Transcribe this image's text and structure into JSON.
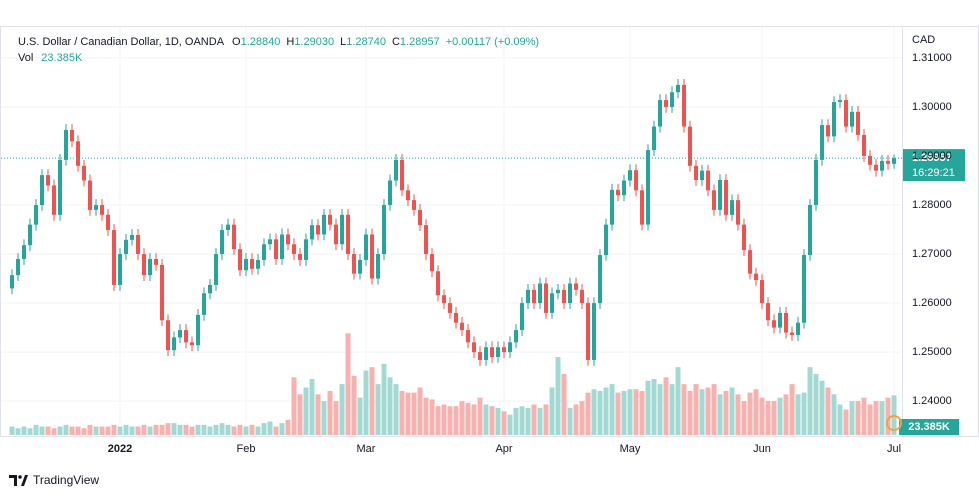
{
  "chart_data": {
    "type": "candlestick",
    "legend": {
      "symbol": "U.S. Dollar / Canadian Dollar, 1D, OANDA",
      "items": [
        {
          "label": "O",
          "value": "1.28840"
        },
        {
          "label": "H",
          "value": "1.29030"
        },
        {
          "label": "L",
          "value": "1.28740"
        },
        {
          "label": "C",
          "value": "1.28957"
        }
      ],
      "change": "+0.00117 (+0.09%)",
      "volume_label": "Vol"
    },
    "currency": "CAD",
    "countdown": "16:29:21",
    "footer": "TradingView",
    "up_color": "#26a69a",
    "down_color": "#ef5350",
    "ylim": [
      1.2331,
      1.3161
    ],
    "yticks": [
      {
        "value": 1.24,
        "label": "1.24000"
      },
      {
        "value": 1.25,
        "label": "1.25000"
      },
      {
        "value": 1.26,
        "label": "1.26000"
      },
      {
        "value": 1.27,
        "label": "1.27000"
      },
      {
        "value": 1.28,
        "label": "1.28000"
      },
      {
        "value": 1.29,
        "label": "1.29000"
      },
      {
        "value": 1.3,
        "label": "1.30000"
      },
      {
        "value": 1.31,
        "label": "1.31000"
      }
    ],
    "grid": true,
    "categories": [
      null,
      null,
      null,
      null,
      null,
      null,
      null,
      null,
      null,
      null,
      null,
      null,
      null,
      null,
      null,
      null,
      null,
      null,
      "2022",
      null,
      null,
      null,
      null,
      null,
      null,
      null,
      null,
      null,
      null,
      null,
      null,
      null,
      null,
      null,
      null,
      null,
      null,
      null,
      null,
      "Feb",
      null,
      null,
      null,
      null,
      null,
      null,
      null,
      null,
      null,
      null,
      null,
      null,
      null,
      null,
      null,
      null,
      null,
      null,
      null,
      "Mar",
      null,
      null,
      null,
      null,
      null,
      null,
      null,
      null,
      null,
      null,
      null,
      null,
      null,
      null,
      null,
      null,
      null,
      null,
      null,
      null,
      null,
      null,
      "Apr",
      null,
      null,
      null,
      null,
      null,
      null,
      null,
      null,
      null,
      null,
      null,
      null,
      null,
      null,
      null,
      null,
      null,
      null,
      null,
      null,
      "May",
      null,
      null,
      null,
      null,
      null,
      null,
      null,
      null,
      null,
      null,
      null,
      null,
      null,
      null,
      null,
      null,
      null,
      null,
      null,
      null,
      null,
      "Jun",
      null,
      null,
      null,
      null,
      null,
      null,
      null,
      null,
      null,
      null,
      null,
      null,
      null,
      null,
      null,
      null,
      null,
      null,
      null,
      null,
      null,
      "Jul"
    ],
    "open": [
      1.263,
      1.2657,
      1.269,
      1.2718,
      1.276,
      1.28,
      1.2861,
      1.284,
      1.278,
      1.2892,
      1.2953,
      1.293,
      1.288,
      1.285,
      1.279,
      1.28,
      1.278,
      1.2749,
      1.2637,
      1.27,
      1.2729,
      1.2739,
      1.27,
      1.2657,
      1.269,
      1.2678,
      1.2565,
      1.2504,
      1.253,
      1.2545,
      1.252,
      1.2514,
      1.2576,
      1.262,
      1.2637,
      1.27,
      1.2749,
      1.276,
      1.271,
      1.2667,
      1.269,
      1.267,
      1.2688,
      1.272,
      1.273,
      1.269,
      1.274,
      1.272,
      1.27,
      1.2688,
      1.273,
      1.2759,
      1.274,
      1.278,
      1.276,
      1.272,
      1.278,
      1.27,
      1.266,
      1.2688,
      1.274,
      1.265,
      1.27,
      1.28,
      1.285,
      1.2892,
      1.283,
      1.281,
      1.279,
      1.2759,
      1.27,
      1.2665,
      1.2616,
      1.26,
      1.258,
      1.256,
      1.2545,
      1.252,
      1.25,
      1.2484,
      1.251,
      1.249,
      1.251,
      1.25,
      1.252,
      1.2545,
      1.26,
      1.2627,
      1.26,
      1.264,
      1.258,
      1.262,
      1.2627,
      1.26,
      1.264,
      1.2627,
      1.26,
      1.2484,
      1.26,
      1.2698,
      1.276,
      1.2831,
      1.282,
      1.285,
      1.2871,
      1.283,
      1.276,
      1.2912,
      1.296,
      1.3014,
      1.3,
      1.303,
      1.3045,
      1.296,
      1.288,
      1.2851,
      1.287,
      1.283,
      1.279,
      1.2851,
      1.278,
      1.281,
      1.276,
      1.2708,
      1.266,
      1.2647,
      1.26,
      1.2565,
      1.255,
      1.258,
      1.254,
      1.2535,
      1.256,
      1.2698,
      1.28,
      1.2892,
      1.2963,
      1.294,
      1.301,
      1.3014,
      1.296,
      1.299,
      1.2943,
      1.29,
      1.2882,
      1.287,
      1.289,
      1.2884
    ],
    "high": [
      1.2669,
      1.2702,
      1.273,
      1.2772,
      1.2812,
      1.2873,
      1.2873,
      1.2852,
      1.2904,
      1.2965,
      1.2965,
      1.2942,
      1.2892,
      1.2862,
      1.2812,
      1.2812,
      1.2792,
      1.2761,
      1.2712,
      1.2741,
      1.2751,
      1.2751,
      1.2712,
      1.2702,
      1.2702,
      1.269,
      1.2577,
      1.2542,
      1.2557,
      1.2557,
      1.2532,
      1.2588,
      1.2632,
      1.2649,
      1.2712,
      1.2761,
      1.2772,
      1.2772,
      1.2722,
      1.2702,
      1.2702,
      1.27,
      1.2732,
      1.2742,
      1.2742,
      1.2752,
      1.2752,
      1.2732,
      1.2712,
      1.2742,
      1.2771,
      1.2771,
      1.2792,
      1.2792,
      1.2772,
      1.2792,
      1.2792,
      1.2712,
      1.27,
      1.2752,
      1.2752,
      1.2712,
      1.2812,
      1.2862,
      1.2904,
      1.2904,
      1.2842,
      1.2822,
      1.2802,
      1.2771,
      1.2712,
      1.2677,
      1.2628,
      1.2612,
      1.2592,
      1.2572,
      1.2557,
      1.2532,
      1.2512,
      1.2522,
      1.2522,
      1.2522,
      1.2522,
      1.2532,
      1.2557,
      1.2612,
      1.2639,
      1.2639,
      1.2652,
      1.2652,
      1.2632,
      1.2639,
      1.2639,
      1.2652,
      1.2652,
      1.2639,
      1.2612,
      1.2612,
      1.271,
      1.2772,
      1.2843,
      1.2843,
      1.2862,
      1.2883,
      1.2883,
      1.2842,
      1.2924,
      1.2972,
      1.3026,
      1.3026,
      1.3042,
      1.3057,
      1.3057,
      1.2972,
      1.2892,
      1.2882,
      1.2882,
      1.2842,
      1.2863,
      1.2863,
      1.2822,
      1.2822,
      1.2772,
      1.272,
      1.2672,
      1.2659,
      1.2612,
      1.2577,
      1.2592,
      1.2592,
      1.2552,
      1.2572,
      1.271,
      1.2812,
      1.2904,
      1.2975,
      1.2975,
      1.3022,
      1.3026,
      1.3026,
      1.3002,
      1.3002,
      1.2955,
      1.2912,
      1.2894,
      1.2902,
      1.2902,
      1.2903
    ],
    "low": [
      1.2618,
      1.2645,
      1.2678,
      1.2706,
      1.2748,
      1.2788,
      1.2828,
      1.2768,
      1.2768,
      1.288,
      1.2918,
      1.2868,
      1.2838,
      1.2778,
      1.2778,
      1.2768,
      1.2737,
      1.2625,
      1.2625,
      1.2688,
      1.2717,
      1.2688,
      1.2645,
      1.2645,
      1.2666,
      1.2553,
      1.2492,
      1.2492,
      1.2518,
      1.2508,
      1.2502,
      1.2502,
      1.2564,
      1.2608,
      1.2625,
      1.2688,
      1.2737,
      1.2698,
      1.2655,
      1.2655,
      1.2658,
      1.2658,
      1.2676,
      1.2708,
      1.2678,
      1.2678,
      1.2708,
      1.2688,
      1.2676,
      1.2676,
      1.2718,
      1.2728,
      1.2728,
      1.2748,
      1.2708,
      1.2708,
      1.2688,
      1.2648,
      1.2648,
      1.2676,
      1.2638,
      1.2638,
      1.2688,
      1.2788,
      1.2838,
      1.2818,
      1.2798,
      1.2778,
      1.2747,
      1.2688,
      1.2653,
      1.2604,
      1.2588,
      1.2568,
      1.2548,
      1.2533,
      1.2508,
      1.2488,
      1.2472,
      1.2472,
      1.2478,
      1.2478,
      1.2488,
      1.2488,
      1.2508,
      1.2533,
      1.2588,
      1.2588,
      1.2588,
      1.2568,
      1.2568,
      1.2608,
      1.2588,
      1.2588,
      1.2615,
      1.2588,
      1.2472,
      1.2472,
      1.2588,
      1.2686,
      1.2748,
      1.2808,
      1.2808,
      1.2838,
      1.2818,
      1.2748,
      1.2748,
      1.29,
      1.2948,
      1.2988,
      1.2988,
      1.3018,
      1.2948,
      1.2868,
      1.2839,
      1.2839,
      1.2818,
      1.2778,
      1.2778,
      1.2768,
      1.2768,
      1.2748,
      1.2696,
      1.2648,
      1.2635,
      1.2588,
      1.2553,
      1.2538,
      1.2538,
      1.2528,
      1.2523,
      1.2523,
      1.2548,
      1.2686,
      1.2788,
      1.288,
      1.2928,
      1.2928,
      1.2998,
      1.2948,
      1.2948,
      1.2931,
      1.2888,
      1.287,
      1.2858,
      1.2858,
      1.2872,
      1.2874
    ],
    "close": [
      1.2657,
      1.269,
      1.2718,
      1.276,
      1.28,
      1.2861,
      1.284,
      1.278,
      1.2892,
      1.2953,
      1.293,
      1.288,
      1.285,
      1.279,
      1.28,
      1.278,
      1.2749,
      1.2637,
      1.27,
      1.2729,
      1.2739,
      1.27,
      1.2657,
      1.269,
      1.2678,
      1.2565,
      1.2504,
      1.253,
      1.2545,
      1.252,
      1.2514,
      1.2576,
      1.262,
      1.2637,
      1.27,
      1.2749,
      1.276,
      1.271,
      1.2667,
      1.269,
      1.267,
      1.2688,
      1.272,
      1.273,
      1.269,
      1.274,
      1.272,
      1.27,
      1.2688,
      1.273,
      1.2759,
      1.274,
      1.278,
      1.276,
      1.272,
      1.278,
      1.27,
      1.266,
      1.2688,
      1.274,
      1.265,
      1.27,
      1.28,
      1.285,
      1.2892,
      1.283,
      1.281,
      1.279,
      1.2759,
      1.27,
      1.2665,
      1.2616,
      1.26,
      1.258,
      1.256,
      1.2545,
      1.252,
      1.25,
      1.2484,
      1.251,
      1.249,
      1.251,
      1.25,
      1.252,
      1.2545,
      1.26,
      1.2627,
      1.26,
      1.264,
      1.258,
      1.262,
      1.2627,
      1.26,
      1.264,
      1.2627,
      1.26,
      1.2484,
      1.26,
      1.2698,
      1.276,
      1.2831,
      1.282,
      1.285,
      1.2871,
      1.283,
      1.276,
      1.2912,
      1.296,
      1.3014,
      1.3,
      1.303,
      1.3045,
      1.296,
      1.288,
      1.2851,
      1.287,
      1.283,
      1.279,
      1.2851,
      1.278,
      1.281,
      1.276,
      1.2708,
      1.266,
      1.2647,
      1.26,
      1.2565,
      1.255,
      1.258,
      1.254,
      1.2535,
      1.256,
      1.2698,
      1.28,
      1.2892,
      1.2963,
      1.294,
      1.301,
      1.3014,
      1.296,
      1.299,
      1.2943,
      1.29,
      1.2882,
      1.287,
      1.289,
      1.2884,
      1.28957
    ],
    "volume": {
      "ylim": [
        0,
        240
      ],
      "up_color": "#a3d9d3",
      "down_color": "#f7b2b0",
      "last_label": "23.385K",
      "values": [
        5,
        4,
        5,
        4,
        6,
        5,
        5,
        4,
        5,
        6,
        5,
        5,
        4,
        6,
        5,
        5,
        5,
        6,
        5,
        6,
        5,
        5,
        6,
        5,
        6,
        6,
        7,
        7,
        6,
        6,
        5,
        6,
        6,
        5,
        6,
        7,
        6,
        5,
        6,
        5,
        6,
        5,
        7,
        8,
        5,
        7,
        9,
        34,
        24,
        28,
        33,
        24,
        20,
        26,
        20,
        30,
        60,
        35,
        22,
        38,
        40,
        30,
        42,
        34,
        30,
        26,
        25,
        25,
        28,
        22,
        21,
        17,
        18,
        17,
        17,
        20,
        19,
        18,
        22,
        18,
        17,
        16,
        14,
        12,
        16,
        17,
        16,
        18,
        16,
        18,
        28,
        46,
        36,
        16,
        18,
        20,
        25,
        27,
        26,
        28,
        30,
        25,
        26,
        27,
        27,
        26,
        32,
        33,
        30,
        34,
        30,
        40,
        30,
        26,
        30,
        27,
        28,
        30,
        24,
        26,
        28,
        24,
        20,
        25,
        27,
        22,
        20,
        20,
        22,
        24,
        30,
        24,
        25,
        40,
        36,
        32,
        28,
        24,
        18,
        15,
        20,
        20,
        22,
        18,
        20,
        20,
        22,
        23.385
      ]
    }
  }
}
